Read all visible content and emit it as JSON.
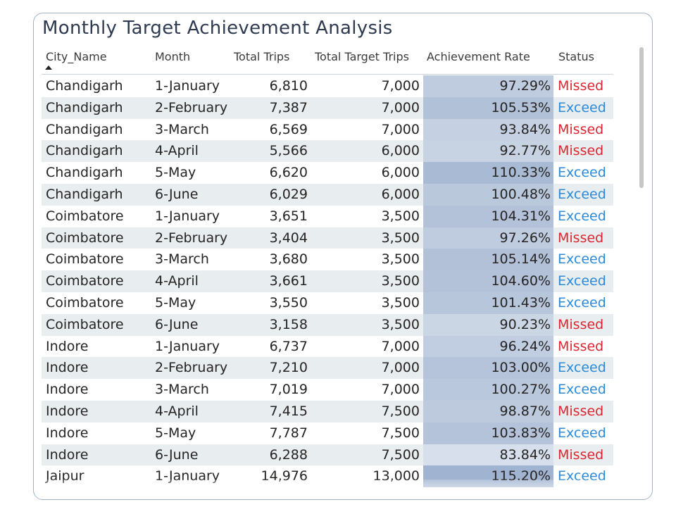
{
  "title": "Monthly Target Achievement Analysis",
  "columns": {
    "city": "City_Name",
    "month": "Month",
    "trips": "Total Trips",
    "target": "Total Target Trips",
    "rate": "Achievement Rate",
    "status": "Status"
  },
  "colors": {
    "missed": "#e0242f",
    "exceed": "#2b8ad9",
    "rate_bg_base": "#dde4ee",
    "rate_bg_strong": "#9fb2cf"
  },
  "rows": [
    {
      "city": "Chandigarh",
      "month": "1-January",
      "trips": "6,810",
      "target": "7,000",
      "rate": "97.29%",
      "status": "Missed"
    },
    {
      "city": "Chandigarh",
      "month": "2-February",
      "trips": "7,387",
      "target": "7,000",
      "rate": "105.53%",
      "status": "Exceed"
    },
    {
      "city": "Chandigarh",
      "month": "3-March",
      "trips": "6,569",
      "target": "7,000",
      "rate": "93.84%",
      "status": "Missed"
    },
    {
      "city": "Chandigarh",
      "month": "4-April",
      "trips": "5,566",
      "target": "6,000",
      "rate": "92.77%",
      "status": "Missed"
    },
    {
      "city": "Chandigarh",
      "month": "5-May",
      "trips": "6,620",
      "target": "6,000",
      "rate": "110.33%",
      "status": "Exceed"
    },
    {
      "city": "Chandigarh",
      "month": "6-June",
      "trips": "6,029",
      "target": "6,000",
      "rate": "100.48%",
      "status": "Exceed"
    },
    {
      "city": "Coimbatore",
      "month": "1-January",
      "trips": "3,651",
      "target": "3,500",
      "rate": "104.31%",
      "status": "Exceed"
    },
    {
      "city": "Coimbatore",
      "month": "2-February",
      "trips": "3,404",
      "target": "3,500",
      "rate": "97.26%",
      "status": "Missed"
    },
    {
      "city": "Coimbatore",
      "month": "3-March",
      "trips": "3,680",
      "target": "3,500",
      "rate": "105.14%",
      "status": "Exceed"
    },
    {
      "city": "Coimbatore",
      "month": "4-April",
      "trips": "3,661",
      "target": "3,500",
      "rate": "104.60%",
      "status": "Exceed"
    },
    {
      "city": "Coimbatore",
      "month": "5-May",
      "trips": "3,550",
      "target": "3,500",
      "rate": "101.43%",
      "status": "Exceed"
    },
    {
      "city": "Coimbatore",
      "month": "6-June",
      "trips": "3,158",
      "target": "3,500",
      "rate": "90.23%",
      "status": "Missed"
    },
    {
      "city": "Indore",
      "month": "1-January",
      "trips": "6,737",
      "target": "7,000",
      "rate": "96.24%",
      "status": "Missed"
    },
    {
      "city": "Indore",
      "month": "2-February",
      "trips": "7,210",
      "target": "7,000",
      "rate": "103.00%",
      "status": "Exceed"
    },
    {
      "city": "Indore",
      "month": "3-March",
      "trips": "7,019",
      "target": "7,000",
      "rate": "100.27%",
      "status": "Exceed"
    },
    {
      "city": "Indore",
      "month": "4-April",
      "trips": "7,415",
      "target": "7,500",
      "rate": "98.87%",
      "status": "Missed"
    },
    {
      "city": "Indore",
      "month": "5-May",
      "trips": "7,787",
      "target": "7,500",
      "rate": "103.83%",
      "status": "Exceed"
    },
    {
      "city": "Indore",
      "month": "6-June",
      "trips": "6,288",
      "target": "7,500",
      "rate": "83.84%",
      "status": "Missed"
    },
    {
      "city": "Jaipur",
      "month": "1-January",
      "trips": "14,976",
      "target": "13,000",
      "rate": "115.20%",
      "status": "Exceed"
    }
  ]
}
